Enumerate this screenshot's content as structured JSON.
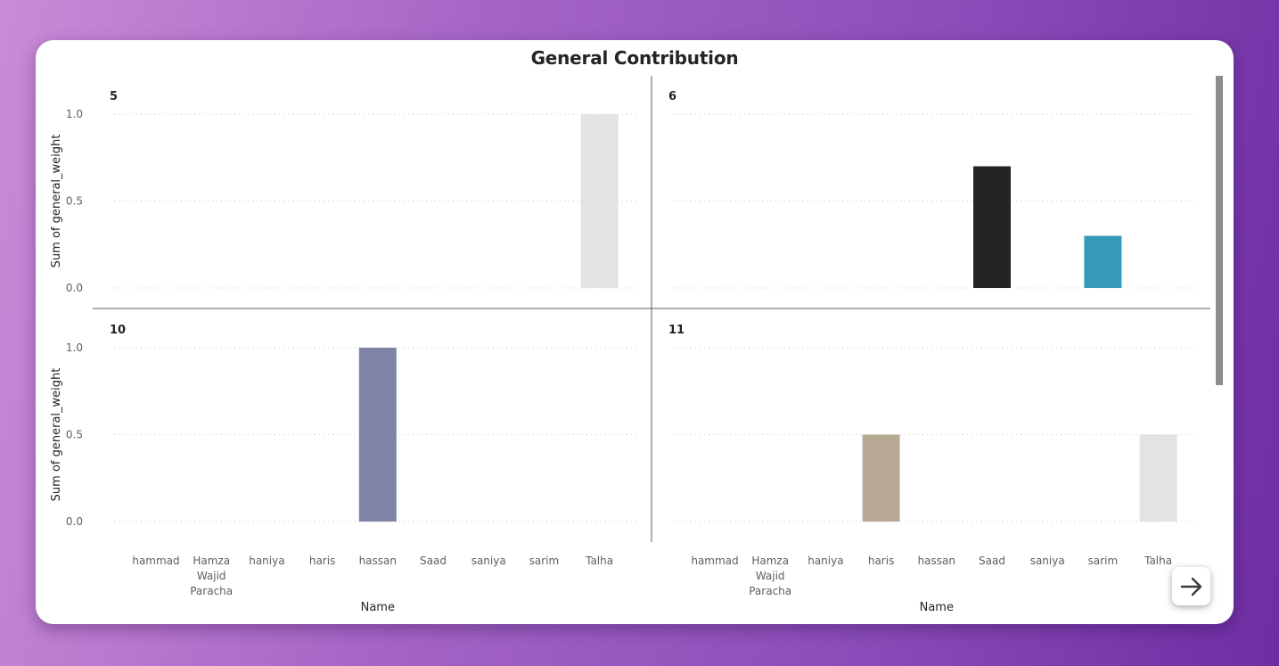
{
  "title": "General Contribution",
  "chart_data": {
    "type": "bar",
    "title": "General Contribution",
    "xlabel": "Name",
    "ylabel": "Sum of general_weight",
    "ylim": [
      0,
      1
    ],
    "yticks": [
      "1.0",
      "0.5",
      "0.0"
    ],
    "categories": [
      "hammad",
      "Hamza Wajid Paracha",
      "haniya",
      "haris",
      "hassan",
      "Saad",
      "saniya",
      "sarim",
      "Talha"
    ],
    "grid": true,
    "panels": [
      {
        "facet": "5",
        "values": [
          0,
          0,
          0,
          0,
          0,
          0,
          0,
          0,
          1.0
        ],
        "colors": [
          "#e3e3e3",
          "#e3e3e3",
          "#e3e3e3",
          "#e3e3e3",
          "#e3e3e3",
          "#e3e3e3",
          "#e3e3e3",
          "#e3e3e3",
          "#e3e3e3"
        ]
      },
      {
        "facet": "6",
        "values": [
          0,
          0,
          0,
          0,
          0,
          0.7,
          0,
          0.3,
          0
        ],
        "colors": [
          "#252423",
          "#252423",
          "#252423",
          "#252423",
          "#252423",
          "#252423",
          "#3599b8",
          "#3599b8",
          "#3599b8"
        ]
      },
      {
        "facet": "10",
        "values": [
          0,
          0,
          0,
          0,
          1.0,
          0,
          0,
          0,
          0
        ],
        "colors": [
          "#7f84a6",
          "#7f84a6",
          "#7f84a6",
          "#7f84a6",
          "#7f84a6",
          "#7f84a6",
          "#7f84a6",
          "#7f84a6",
          "#7f84a6"
        ]
      },
      {
        "facet": "11",
        "values": [
          0,
          0,
          0,
          0.5,
          0,
          0,
          0,
          0,
          0.5
        ],
        "colors": [
          "#b8a994",
          "#b8a994",
          "#b8a994",
          "#b8a994",
          "#b8a994",
          "#b8a994",
          "#b8a994",
          "#b8a994",
          "#e3e3e3"
        ]
      }
    ]
  },
  "colors": {
    "grid": "#c8c6c4",
    "divider": "#605e5c",
    "scrollbar": "#8c8c8c"
  },
  "icons": {
    "next": "arrow-right-icon"
  }
}
